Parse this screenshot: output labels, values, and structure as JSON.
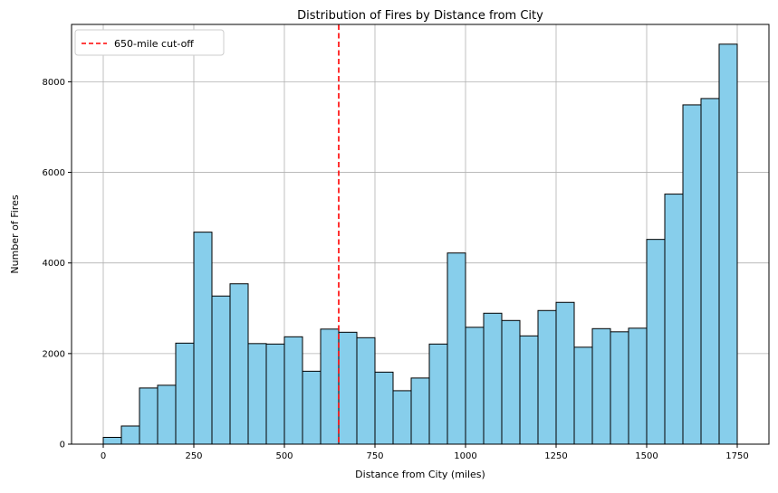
{
  "chart_data": {
    "type": "bar",
    "title": "Distribution of Fires by Distance from City",
    "xlabel": "Distance from City (miles)",
    "ylabel": "Number of Fires",
    "xlim": [
      -87.5,
      1837.5
    ],
    "ylim": [
      0,
      9266
    ],
    "x_ticks": [
      0,
      250,
      500,
      750,
      1000,
      1250,
      1500,
      1750
    ],
    "y_ticks": [
      0,
      2000,
      4000,
      6000,
      8000
    ],
    "grid": true,
    "bin_width": 50,
    "bins_start": [
      0,
      50,
      100,
      150,
      200,
      250,
      300,
      350,
      400,
      450,
      500,
      550,
      600,
      650,
      700,
      750,
      800,
      850,
      900,
      950,
      1000,
      1050,
      1100,
      1150,
      1200,
      1250,
      1300,
      1350,
      1400,
      1450,
      1500,
      1550,
      1600,
      1650,
      1700
    ],
    "values": [
      150,
      400,
      1240,
      1300,
      2230,
      4680,
      3270,
      3540,
      2220,
      2210,
      2370,
      1610,
      2540,
      2470,
      2350,
      1590,
      1180,
      1460,
      2210,
      4220,
      2580,
      2890,
      2730,
      2390,
      2950,
      3130,
      2140,
      2550,
      2480,
      2560,
      4520,
      5520,
      7490,
      7630,
      8830
    ],
    "bar_color": "#87CEEB",
    "bar_edge_color": "#000000",
    "cutoff": {
      "x": 650,
      "color": "#FF0000",
      "label": "650-mile cut-off"
    },
    "legend": {
      "position": "top-left",
      "entries": [
        "650-mile cut-off"
      ]
    }
  }
}
